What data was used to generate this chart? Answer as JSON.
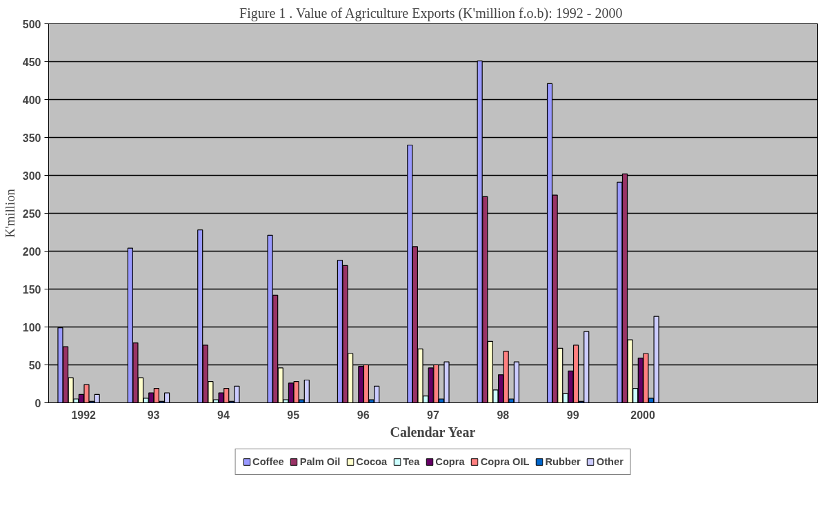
{
  "chart_data": {
    "type": "bar",
    "title": "Figure 1 .  Value of Agriculture Exports (K'million f.o.b): 1992 - 2000",
    "xlabel": "Calendar Year",
    "ylabel": "K'million",
    "categories": [
      "1992",
      "93",
      "94",
      "95",
      "96",
      "97",
      "98",
      "99",
      "2000",
      null,
      null
    ],
    "series": [
      {
        "name": "Coffee",
        "color": "#9999ff",
        "values": [
          99,
          204,
          228,
          221,
          188,
          340,
          451,
          421,
          291,
          null,
          null
        ]
      },
      {
        "name": "Palm Oil",
        "color": "#993366",
        "values": [
          74,
          79,
          76,
          142,
          181,
          206,
          272,
          274,
          302,
          null,
          null
        ]
      },
      {
        "name": "Cocoa",
        "color": "#ffffcc",
        "values": [
          33,
          33,
          28,
          46,
          65,
          71,
          81,
          72,
          83,
          null,
          null
        ]
      },
      {
        "name": "Tea",
        "color": "#ccffff",
        "values": [
          5,
          6,
          4,
          4,
          null,
          9,
          17,
          12,
          19,
          null,
          null
        ]
      },
      {
        "name": "Copra",
        "color": "#660066",
        "values": [
          11,
          13,
          13,
          26,
          48,
          46,
          37,
          42,
          59,
          null,
          null
        ]
      },
      {
        "name": "Copra OIL",
        "color": "#ff8080",
        "values": [
          24,
          19,
          19,
          28,
          50,
          50,
          68,
          76,
          65,
          null,
          null
        ]
      },
      {
        "name": "Rubber",
        "color": "#0066cc",
        "values": [
          2,
          2,
          2,
          4,
          4,
          5,
          5,
          2,
          6,
          null,
          null
        ]
      },
      {
        "name": "Other",
        "color": "#ccccff",
        "values": [
          11,
          13,
          22,
          30,
          22,
          54,
          54,
          94,
          114,
          null,
          null
        ]
      }
    ],
    "ylim": [
      0,
      500
    ],
    "yticks": [
      0,
      50,
      100,
      150,
      200,
      250,
      300,
      350,
      400,
      450,
      500
    ],
    "grid": "y",
    "legend": "bottom"
  }
}
